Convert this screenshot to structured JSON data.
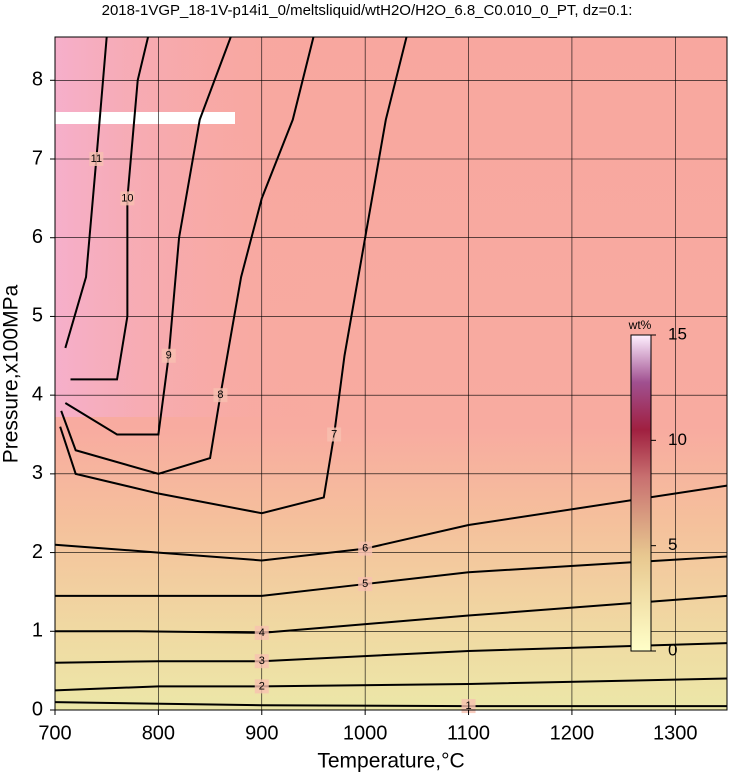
{
  "chart_data": {
    "type": "contour",
    "title": "2018-1VGP_18-1V-p14i1_0/meltsliquid/wtH2O/H2O_6.8_C0.010_0_PT, dz=0.1:",
    "x_label": "Temperature,°C",
    "y_label": "Pressure,x100MPa",
    "xlim": [
      700,
      1350
    ],
    "ylim": [
      0,
      8.55
    ],
    "xticks": [
      700,
      800,
      900,
      1000,
      1100,
      1200,
      1300
    ],
    "yticks": [
      0,
      1,
      2,
      3,
      4,
      5,
      6,
      7,
      8
    ],
    "grid": true,
    "colorbar": {
      "label": "wt%",
      "lim": [
        0,
        15
      ],
      "ticks": [
        0,
        5,
        10,
        15
      ]
    },
    "contours": [
      {
        "level": 1,
        "x": [
          700,
          900,
          1100,
          1350
        ],
        "y": [
          0.1,
          0.06,
          0.05,
          0.05
        ]
      },
      {
        "level": 2,
        "x": [
          700,
          800,
          900,
          1100,
          1350
        ],
        "y": [
          0.25,
          0.3,
          0.3,
          0.33,
          0.4
        ]
      },
      {
        "level": 3,
        "x": [
          700,
          800,
          900,
          1100,
          1350
        ],
        "y": [
          0.6,
          0.62,
          0.62,
          0.75,
          0.85
        ]
      },
      {
        "level": 4,
        "x": [
          700,
          780,
          900,
          1100,
          1350
        ],
        "y": [
          1.0,
          1.0,
          0.98,
          1.2,
          1.45
        ]
      },
      {
        "level": 5,
        "x": [
          700,
          800,
          900,
          1000,
          1100,
          1350
        ],
        "y": [
          1.45,
          1.45,
          1.45,
          1.6,
          1.75,
          1.95
        ]
      },
      {
        "level": 6,
        "x": [
          700,
          800,
          900,
          1000,
          1100,
          1350
        ],
        "y": [
          2.1,
          2.0,
          1.9,
          2.05,
          2.35,
          2.85
        ]
      },
      {
        "level": 7,
        "x": [
          705,
          720,
          800,
          900,
          960,
          970,
          980,
          1000,
          1020,
          1040
        ],
        "y": [
          3.6,
          3.0,
          2.75,
          2.5,
          2.7,
          3.5,
          4.5,
          6,
          7.5,
          8.55
        ]
      },
      {
        "level": 8,
        "x": [
          706,
          720,
          800,
          850,
          860,
          880,
          900,
          930,
          950
        ],
        "y": [
          3.8,
          3.3,
          3.0,
          3.2,
          4,
          5.5,
          6.5,
          7.5,
          8.55
        ]
      },
      {
        "level": 9,
        "x": [
          710,
          760,
          800,
          810,
          820,
          840,
          870
        ],
        "y": [
          3.9,
          3.5,
          3.5,
          4.5,
          6,
          7.5,
          8.55
        ]
      },
      {
        "level": 10,
        "x": [
          715,
          760,
          770,
          770,
          780,
          790
        ],
        "y": [
          4.2,
          4.2,
          5,
          6.5,
          8,
          8.55
        ]
      },
      {
        "level": 11,
        "x": [
          710,
          730,
          740,
          750
        ],
        "y": [
          4.6,
          5.5,
          7,
          8.55
        ]
      }
    ]
  }
}
